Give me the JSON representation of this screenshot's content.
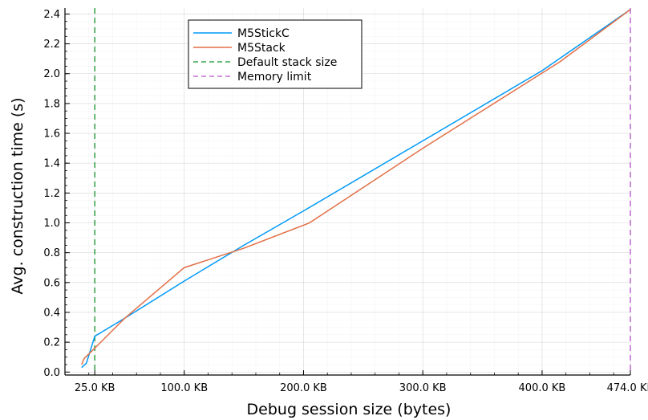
{
  "chart_data": {
    "type": "line",
    "title": "",
    "xlabel": "Debug session size (bytes)",
    "ylabel": "Avg. construction time (s)",
    "xlim": [
      0,
      474
    ],
    "ylim": [
      -0.02,
      2.44
    ],
    "x_unit": "KB",
    "x_ticks": [
      {
        "value": 25,
        "label": "25.0 KB"
      },
      {
        "value": 100,
        "label": "100.0 KB"
      },
      {
        "value": 200,
        "label": "200.0 KB"
      },
      {
        "value": 300,
        "label": "300.0 KB"
      },
      {
        "value": 400,
        "label": "400.0 KB"
      },
      {
        "value": 474,
        "label": "474.0 KB"
      }
    ],
    "y_ticks": [
      {
        "value": 0.0,
        "label": "0.0"
      },
      {
        "value": 0.2,
        "label": "0.2"
      },
      {
        "value": 0.4,
        "label": "0.4"
      },
      {
        "value": 0.6,
        "label": "0.6"
      },
      {
        "value": 0.8,
        "label": "0.8"
      },
      {
        "value": 1.0,
        "label": "1.0"
      },
      {
        "value": 1.2,
        "label": "1.2"
      },
      {
        "value": 1.4,
        "label": "1.4"
      },
      {
        "value": 1.6,
        "label": "1.6"
      },
      {
        "value": 1.8,
        "label": "1.8"
      },
      {
        "value": 2.0,
        "label": "2.0"
      },
      {
        "value": 2.2,
        "label": "2.2"
      },
      {
        "value": 2.4,
        "label": "2.4"
      }
    ],
    "grid": true,
    "legend_position": "top",
    "series": [
      {
        "name": "M5StickC",
        "color": "#009AF9",
        "style": "solid",
        "x": [
          14,
          18,
          25,
          50,
          100,
          150,
          200,
          300,
          400,
          474
        ],
        "y": [
          0.03,
          0.06,
          0.24,
          0.36,
          0.61,
          0.85,
          1.08,
          1.55,
          2.02,
          2.43
        ]
      },
      {
        "name": "M5Stack",
        "color": "#E26F46",
        "style": "solid",
        "x": [
          14,
          16,
          25,
          50,
          100,
          150,
          205,
          300,
          415,
          474
        ],
        "y": [
          0.05,
          0.09,
          0.16,
          0.36,
          0.7,
          0.83,
          1.0,
          1.5,
          2.08,
          2.43
        ]
      }
    ],
    "reference_lines": [
      {
        "name": "Default stack size",
        "axis": "x",
        "value": 25,
        "color": "#3EA44E",
        "style": "dashed"
      },
      {
        "name": "Memory limit",
        "axis": "x",
        "value": 474,
        "color": "#C271D2",
        "style": "dashed"
      }
    ]
  }
}
